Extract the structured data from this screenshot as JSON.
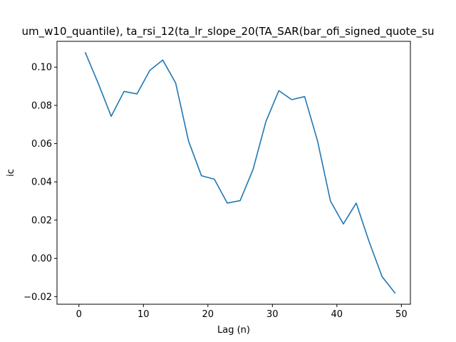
{
  "chart_data": {
    "type": "line",
    "title": "um_w10_quantile), ta_rsi_12(ta_lr_slope_20(TA_SAR(bar_ofi_signed_quote_su",
    "xlabel": "Lag (n)",
    "ylabel": "ic",
    "xlim": [
      -3.4,
      51.4
    ],
    "ylim": [
      -0.024,
      0.1135
    ],
    "xticks": [
      0,
      10,
      20,
      30,
      40,
      50
    ],
    "yticks": [
      -0.02,
      0.0,
      0.02,
      0.04,
      0.06,
      0.08,
      0.1
    ],
    "xtick_labels": [
      "0",
      "10",
      "20",
      "30",
      "40",
      "50"
    ],
    "ytick_labels": [
      "−0.02",
      "0.00",
      "0.02",
      "0.04",
      "0.06",
      "0.08",
      "0.10"
    ],
    "grid": false,
    "series": [
      {
        "color": "#1f77b4",
        "x": [
          1,
          3,
          5,
          7,
          9,
          11,
          13,
          15,
          17,
          19,
          21,
          23,
          25,
          27,
          29,
          31,
          33,
          35,
          37,
          39,
          41,
          43,
          45,
          47,
          49
        ],
        "y": [
          0.1075,
          0.0915,
          0.0743,
          0.0873,
          0.086,
          0.0983,
          0.1037,
          0.0917,
          0.0613,
          0.0432,
          0.0414,
          0.0289,
          0.0302,
          0.0465,
          0.0716,
          0.0877,
          0.083,
          0.0846,
          0.0614,
          0.03,
          0.018,
          0.0289,
          0.0087,
          -0.0095,
          -0.0181
        ]
      }
    ]
  }
}
